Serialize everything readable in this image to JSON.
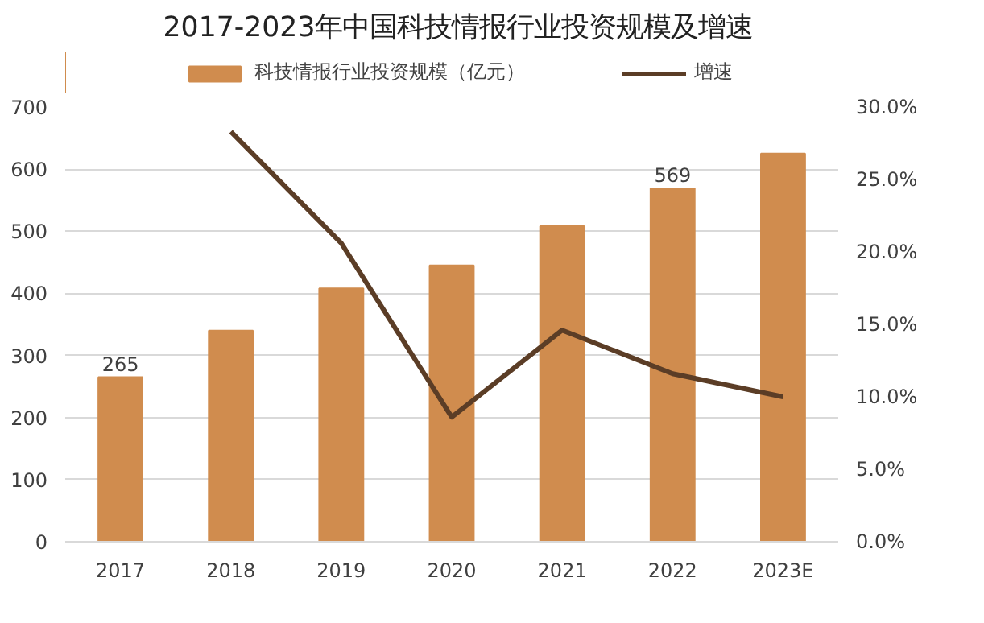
{
  "chart_data": {
    "type": "bar",
    "title": "2017-2023年中国科技情报行业投资规模及增速",
    "categories": [
      "2017",
      "2018",
      "2019",
      "2020",
      "2021",
      "2022",
      "2023E"
    ],
    "series": [
      {
        "name": "科技情报行业投资规模（亿元）",
        "color": "#d08c4e",
        "values": [
          265,
          340,
          408,
          445,
          508,
          569,
          625
        ],
        "value_labels": [
          "265",
          null,
          null,
          null,
          null,
          "569",
          null
        ]
      },
      {
        "name": "增速",
        "type": "line",
        "axis": "y2",
        "color": "#5b3d26",
        "values": [
          null,
          28.3,
          20.6,
          8.6,
          14.6,
          11.6,
          10.0
        ]
      }
    ],
    "ylim": [
      0,
      700
    ],
    "yticks": [
      0,
      100,
      200,
      300,
      400,
      500,
      600,
      700
    ],
    "y2lim": [
      0,
      30
    ],
    "y2ticks": [
      {
        "value": 0,
        "label": "0.0%"
      },
      {
        "value": 5,
        "label": "5.0%"
      },
      {
        "value": 10,
        "label": "10.0%"
      },
      {
        "value": 15,
        "label": "15.0%"
      },
      {
        "value": 20,
        "label": "20.0%"
      },
      {
        "value": 25,
        "label": "25.0%"
      },
      {
        "value": 30,
        "label": "30.0%"
      }
    ],
    "grid": "y",
    "legend": "top",
    "marker": "none",
    "line_style": "solid"
  }
}
